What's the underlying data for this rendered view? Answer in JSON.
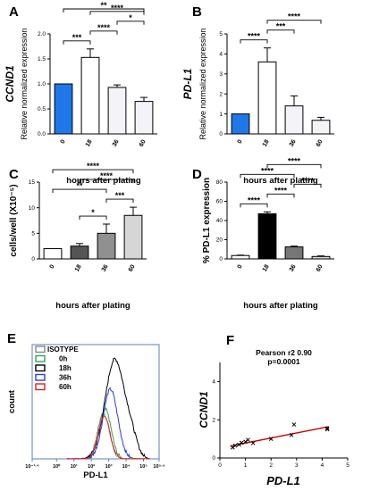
{
  "chart_data": [
    {
      "panel": "A",
      "type": "bar",
      "ylabel_gene": "CCND1",
      "ylabel": "Relative normalized expression",
      "xlabel": "hours after plating",
      "categories": [
        "0",
        "18",
        "36",
        "60"
      ],
      "values": [
        1.0,
        1.53,
        0.93,
        0.65
      ],
      "errors": [
        0,
        0.17,
        0.05,
        0.08
      ],
      "colors": [
        "#1f78e8",
        "#ffffff",
        "#f3f3f8",
        "#f3f3f8"
      ],
      "ylim": [
        0,
        2.0
      ],
      "yticks": [
        "0.0",
        "0.5",
        "1.0",
        "1.5",
        "2.0"
      ],
      "significance": [
        {
          "from": 0,
          "to": 1,
          "label": "***"
        },
        {
          "from": 1,
          "to": 2,
          "label": "****"
        },
        {
          "from": 2,
          "to": 3,
          "label": "*"
        },
        {
          "from": 1,
          "to": 3,
          "label": "****"
        },
        {
          "from": 0,
          "to": 3,
          "label": "**"
        }
      ]
    },
    {
      "panel": "B",
      "type": "bar",
      "ylabel_gene": "PD-L1",
      "ylabel": "Relative normalized expression",
      "xlabel": "hours after plating",
      "categories": [
        "0",
        "18",
        "36",
        "60"
      ],
      "values": [
        1.0,
        3.6,
        1.4,
        0.68
      ],
      "errors": [
        0,
        0.7,
        0.5,
        0.15
      ],
      "colors": [
        "#1f78e8",
        "#ffffff",
        "#f3f3f8",
        "#f3f3f8"
      ],
      "ylim": [
        0,
        5
      ],
      "yticks": [
        "0",
        "1",
        "2",
        "3",
        "4",
        "5"
      ],
      "significance": [
        {
          "from": 0,
          "to": 1,
          "label": "****"
        },
        {
          "from": 1,
          "to": 2,
          "label": "***"
        },
        {
          "from": 1,
          "to": 3,
          "label": "****"
        }
      ]
    },
    {
      "panel": "C",
      "type": "bar",
      "ylabel": "cells/well (X10⁻⁵)",
      "xlabel": "hours after plating",
      "categories": [
        "0",
        "18",
        "36",
        "60"
      ],
      "values": [
        2.0,
        2.5,
        5.0,
        8.5
      ],
      "errors": [
        0,
        0.5,
        1.8,
        1.6
      ],
      "colors": [
        "#ffffff",
        "#555555",
        "#909090",
        "#d6d6d6"
      ],
      "ylim": [
        0,
        15
      ],
      "yticks": [
        "0",
        "5",
        "10",
        "15"
      ],
      "significance": [
        {
          "from": 0,
          "to": 2,
          "label": "**"
        },
        {
          "from": 1,
          "to": 2,
          "label": "*"
        },
        {
          "from": 2,
          "to": 3,
          "label": "***"
        },
        {
          "from": 1,
          "to": 3,
          "label": "****"
        },
        {
          "from": 0,
          "to": 3,
          "label": "****"
        }
      ]
    },
    {
      "panel": "D",
      "type": "bar",
      "ylabel": "% PD-L1 expression",
      "xlabel": "hours after plating",
      "categories": [
        "0",
        "18",
        "36",
        "60"
      ],
      "values": [
        3.5,
        47,
        12.5,
        2.5
      ],
      "errors": [
        0.4,
        2.0,
        0.8,
        0.6
      ],
      "colors": [
        "#ffffff",
        "#000000",
        "#777777",
        "#d6d6d6"
      ],
      "ylim": [
        0,
        80
      ],
      "yticks": [
        "0",
        "20",
        "40",
        "60",
        "80"
      ],
      "significance": [
        {
          "from": 0,
          "to": 1,
          "label": "****"
        },
        {
          "from": 1,
          "to": 2,
          "label": "****"
        },
        {
          "from": 2,
          "to": 3,
          "label": "****"
        },
        {
          "from": 0,
          "to": 2,
          "label": "****"
        },
        {
          "from": 1,
          "to": 3,
          "label": "****"
        }
      ]
    },
    {
      "panel": "E",
      "type": "line",
      "ylabel": "count",
      "xlabel": "PD-L1",
      "x_tick_labels": [
        "10⁻¹·⁴",
        "10⁰",
        "10¹",
        "10²",
        "10³",
        "10⁴",
        "10⁵",
        "10⁵·⁹"
      ],
      "x_tick_positions": [
        -1.4,
        0,
        1,
        2,
        3,
        4,
        5,
        5.9
      ],
      "xlim": [
        -1.4,
        5.9
      ],
      "ylim": [
        0,
        1.15
      ],
      "legend": [
        "ISOTYPE",
        "0h",
        "18h",
        "36h",
        "60h"
      ],
      "series": [
        {
          "name": "ISOTYPE",
          "color": "#888888",
          "peak_log": 2.7,
          "width": 0.34,
          "height": 0.46
        },
        {
          "name": "0h",
          "color": "#2fa84f",
          "peak_log": 2.8,
          "width": 0.34,
          "height": 0.5
        },
        {
          "name": "18h",
          "color": "#000000",
          "peak_log": 3.35,
          "width": 0.55,
          "height": 1.0
        },
        {
          "name": "36h",
          "color": "#2a3fd6",
          "peak_log": 3.1,
          "width": 0.42,
          "height": 0.7
        },
        {
          "name": "60h",
          "color": "#e02020",
          "peak_log": 2.75,
          "width": 0.33,
          "height": 0.44
        }
      ]
    },
    {
      "panel": "F",
      "type": "scatter",
      "xlabel": "PD-L1",
      "ylabel": "CCND1",
      "annotation": [
        "Pearson r2 0.90",
        "p=0.0001"
      ],
      "xlim": [
        0,
        5
      ],
      "ylim": [
        0,
        5
      ],
      "xticks": [
        "0",
        "1",
        "2",
        "3",
        "4",
        "5"
      ],
      "yticks": [
        "0",
        "2",
        "4"
      ],
      "points": [
        [
          0.5,
          0.55
        ],
        [
          0.6,
          0.65
        ],
        [
          0.75,
          0.7
        ],
        [
          0.85,
          0.8
        ],
        [
          1.0,
          0.85
        ],
        [
          1.1,
          0.95
        ],
        [
          1.3,
          0.78
        ],
        [
          2.0,
          1.0
        ],
        [
          2.8,
          1.2
        ],
        [
          2.9,
          1.75
        ],
        [
          4.2,
          1.5
        ],
        [
          4.2,
          1.55
        ]
      ],
      "fit": {
        "x": [
          0.4,
          4.25
        ],
        "y": [
          0.62,
          1.64
        ],
        "color": "#d00000"
      }
    }
  ]
}
